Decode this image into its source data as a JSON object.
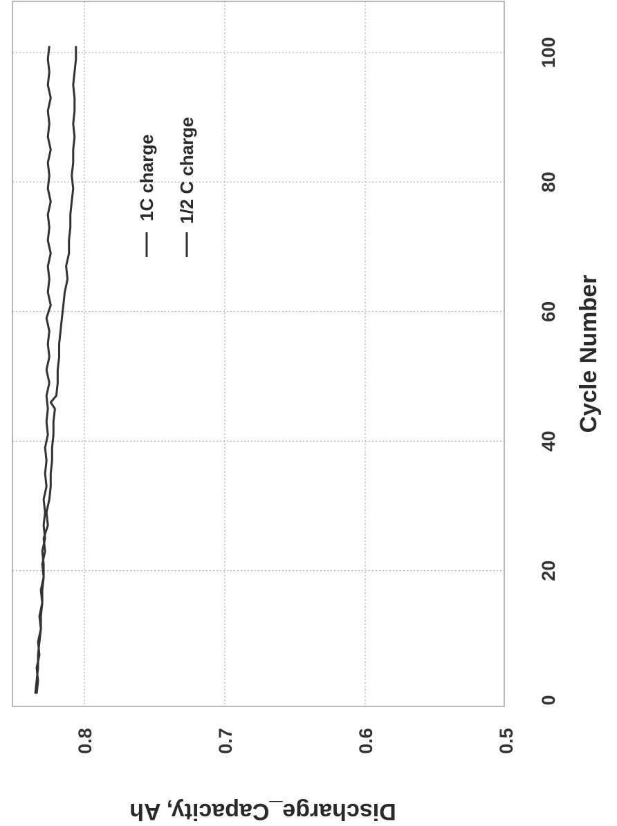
{
  "chart_data": {
    "type": "line",
    "xlabel": "Cycle Number",
    "ylabel": "Discharge_Capacity, Ah",
    "xlim": [
      0,
      110
    ],
    "ylim": [
      0.5,
      0.85
    ],
    "x_ticks": [
      0,
      20,
      40,
      60,
      80,
      100
    ],
    "y_ticks": [
      0.5,
      0.6,
      0.7,
      0.8
    ],
    "grid": true,
    "legend_position": "top-right",
    "orientation": "rotated-90-clockwise",
    "series": [
      {
        "name": "1C charge",
        "x": [
          1,
          3,
          5,
          7,
          9,
          11,
          13,
          15,
          17,
          19,
          21,
          23,
          25,
          27,
          29,
          31,
          33,
          35,
          37,
          39,
          41,
          43,
          45,
          47,
          49,
          51,
          53,
          55,
          57,
          59,
          61,
          63,
          65,
          67,
          69,
          71,
          73,
          75,
          77,
          79,
          81,
          83,
          85,
          87,
          89,
          91,
          93,
          95,
          97,
          99,
          101
        ],
        "values": [
          0.835,
          0.834,
          0.833,
          0.833,
          0.832,
          0.831,
          0.831,
          0.83,
          0.83,
          0.829,
          0.829,
          0.83,
          0.828,
          0.829,
          0.828,
          0.829,
          0.827,
          0.828,
          0.827,
          0.828,
          0.826,
          0.827,
          0.826,
          0.827,
          0.825,
          0.827,
          0.825,
          0.826,
          0.825,
          0.827,
          0.824,
          0.826,
          0.825,
          0.826,
          0.824,
          0.826,
          0.825,
          0.826,
          0.824,
          0.826,
          0.825,
          0.826,
          0.824,
          0.826,
          0.825,
          0.826,
          0.824,
          0.826,
          0.825,
          0.826,
          0.825
        ]
      },
      {
        "name": "1/2 C charge",
        "x": [
          1,
          3,
          5,
          7,
          9,
          11,
          13,
          15,
          17,
          19,
          21,
          23,
          25,
          27,
          29,
          31,
          33,
          35,
          37,
          39,
          41,
          43,
          45,
          46,
          47,
          49,
          51,
          53,
          55,
          57,
          59,
          61,
          63,
          65,
          67,
          69,
          71,
          73,
          75,
          77,
          79,
          81,
          83,
          85,
          87,
          89,
          91,
          93,
          95,
          97,
          99,
          101
        ],
        "values": [
          0.834,
          0.833,
          0.834,
          0.832,
          0.833,
          0.831,
          0.832,
          0.83,
          0.831,
          0.829,
          0.83,
          0.828,
          0.829,
          0.826,
          0.827,
          0.825,
          0.824,
          0.824,
          0.823,
          0.823,
          0.822,
          0.822,
          0.821,
          0.824,
          0.82,
          0.819,
          0.819,
          0.818,
          0.818,
          0.817,
          0.816,
          0.815,
          0.814,
          0.812,
          0.813,
          0.811,
          0.811,
          0.81,
          0.81,
          0.809,
          0.808,
          0.809,
          0.808,
          0.808,
          0.807,
          0.808,
          0.807,
          0.807,
          0.808,
          0.807,
          0.806,
          0.806
        ]
      }
    ]
  }
}
